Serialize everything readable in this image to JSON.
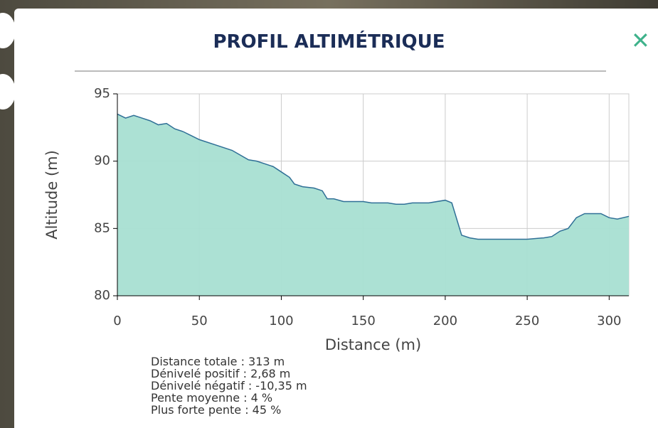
{
  "header": {
    "title": "PROFIL ALTIMÉTRIQUE",
    "close": "✕"
  },
  "chart_data": {
    "type": "area",
    "x": [
      0,
      5,
      10,
      15,
      20,
      25,
      30,
      35,
      40,
      45,
      50,
      60,
      70,
      80,
      85,
      90,
      95,
      100,
      105,
      108,
      113,
      120,
      125,
      128,
      132,
      138,
      150,
      155,
      165,
      170,
      175,
      180,
      190,
      200,
      204,
      210,
      215,
      220,
      230,
      240,
      250,
      260,
      265,
      270,
      275,
      280,
      285,
      295,
      300,
      305,
      312
    ],
    "values": [
      93.5,
      93.2,
      93.4,
      93.2,
      93.0,
      92.7,
      92.8,
      92.4,
      92.2,
      91.9,
      91.6,
      91.2,
      90.8,
      90.1,
      90.0,
      89.8,
      89.6,
      89.2,
      88.8,
      88.3,
      88.1,
      88.0,
      87.8,
      87.2,
      87.2,
      87.0,
      87.0,
      86.9,
      86.9,
      86.8,
      86.8,
      86.9,
      86.9,
      87.1,
      86.9,
      84.5,
      84.3,
      84.2,
      84.2,
      84.2,
      84.2,
      84.3,
      84.4,
      84.8,
      85.0,
      85.8,
      86.1,
      86.1,
      85.8,
      85.7,
      85.9
    ],
    "color": "#a8dfd2",
    "line_color": "#2f6f96",
    "xlim": [
      0,
      312
    ],
    "ylim": [
      80,
      95
    ],
    "xticks": [
      0,
      50,
      100,
      150,
      200,
      250,
      300
    ],
    "yticks": [
      80,
      85,
      90,
      95
    ],
    "xlabel": "Distance (m)",
    "ylabel": "Altitude (m)",
    "grid": true
  },
  "stats": [
    "Distance totale : 313 m",
    "Dénivelé positif : 2,68 m",
    "Dénivelé négatif : -10,35 m",
    "Pente moyenne : 4 %",
    "Plus forte pente : 45 %"
  ]
}
